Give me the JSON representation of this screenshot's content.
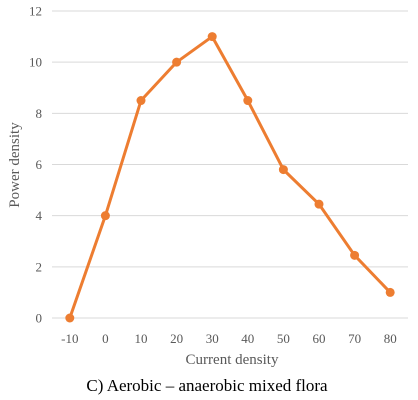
{
  "chart_data": {
    "type": "line",
    "caption": "C) Aerobic – anaerobic mixed flora",
    "xlabel": "Current density",
    "ylabel": "Power density",
    "x_ticks": [
      "-10",
      "0",
      "10",
      "20",
      "30",
      "40",
      "50",
      "60",
      "70",
      "80"
    ],
    "y_ticks": [
      "0",
      "2",
      "4",
      "6",
      "8",
      "10",
      "12"
    ],
    "ylim": [
      0,
      12
    ],
    "grid": "horizontal",
    "series": [
      {
        "x": [
          -10,
          0,
          10,
          20,
          30,
          40,
          50,
          60,
          70,
          80
        ],
        "values": [
          0,
          4,
          8.5,
          10,
          11,
          8.5,
          5.8,
          4.45,
          2.45,
          1
        ],
        "color": "#ED7D31"
      }
    ]
  }
}
